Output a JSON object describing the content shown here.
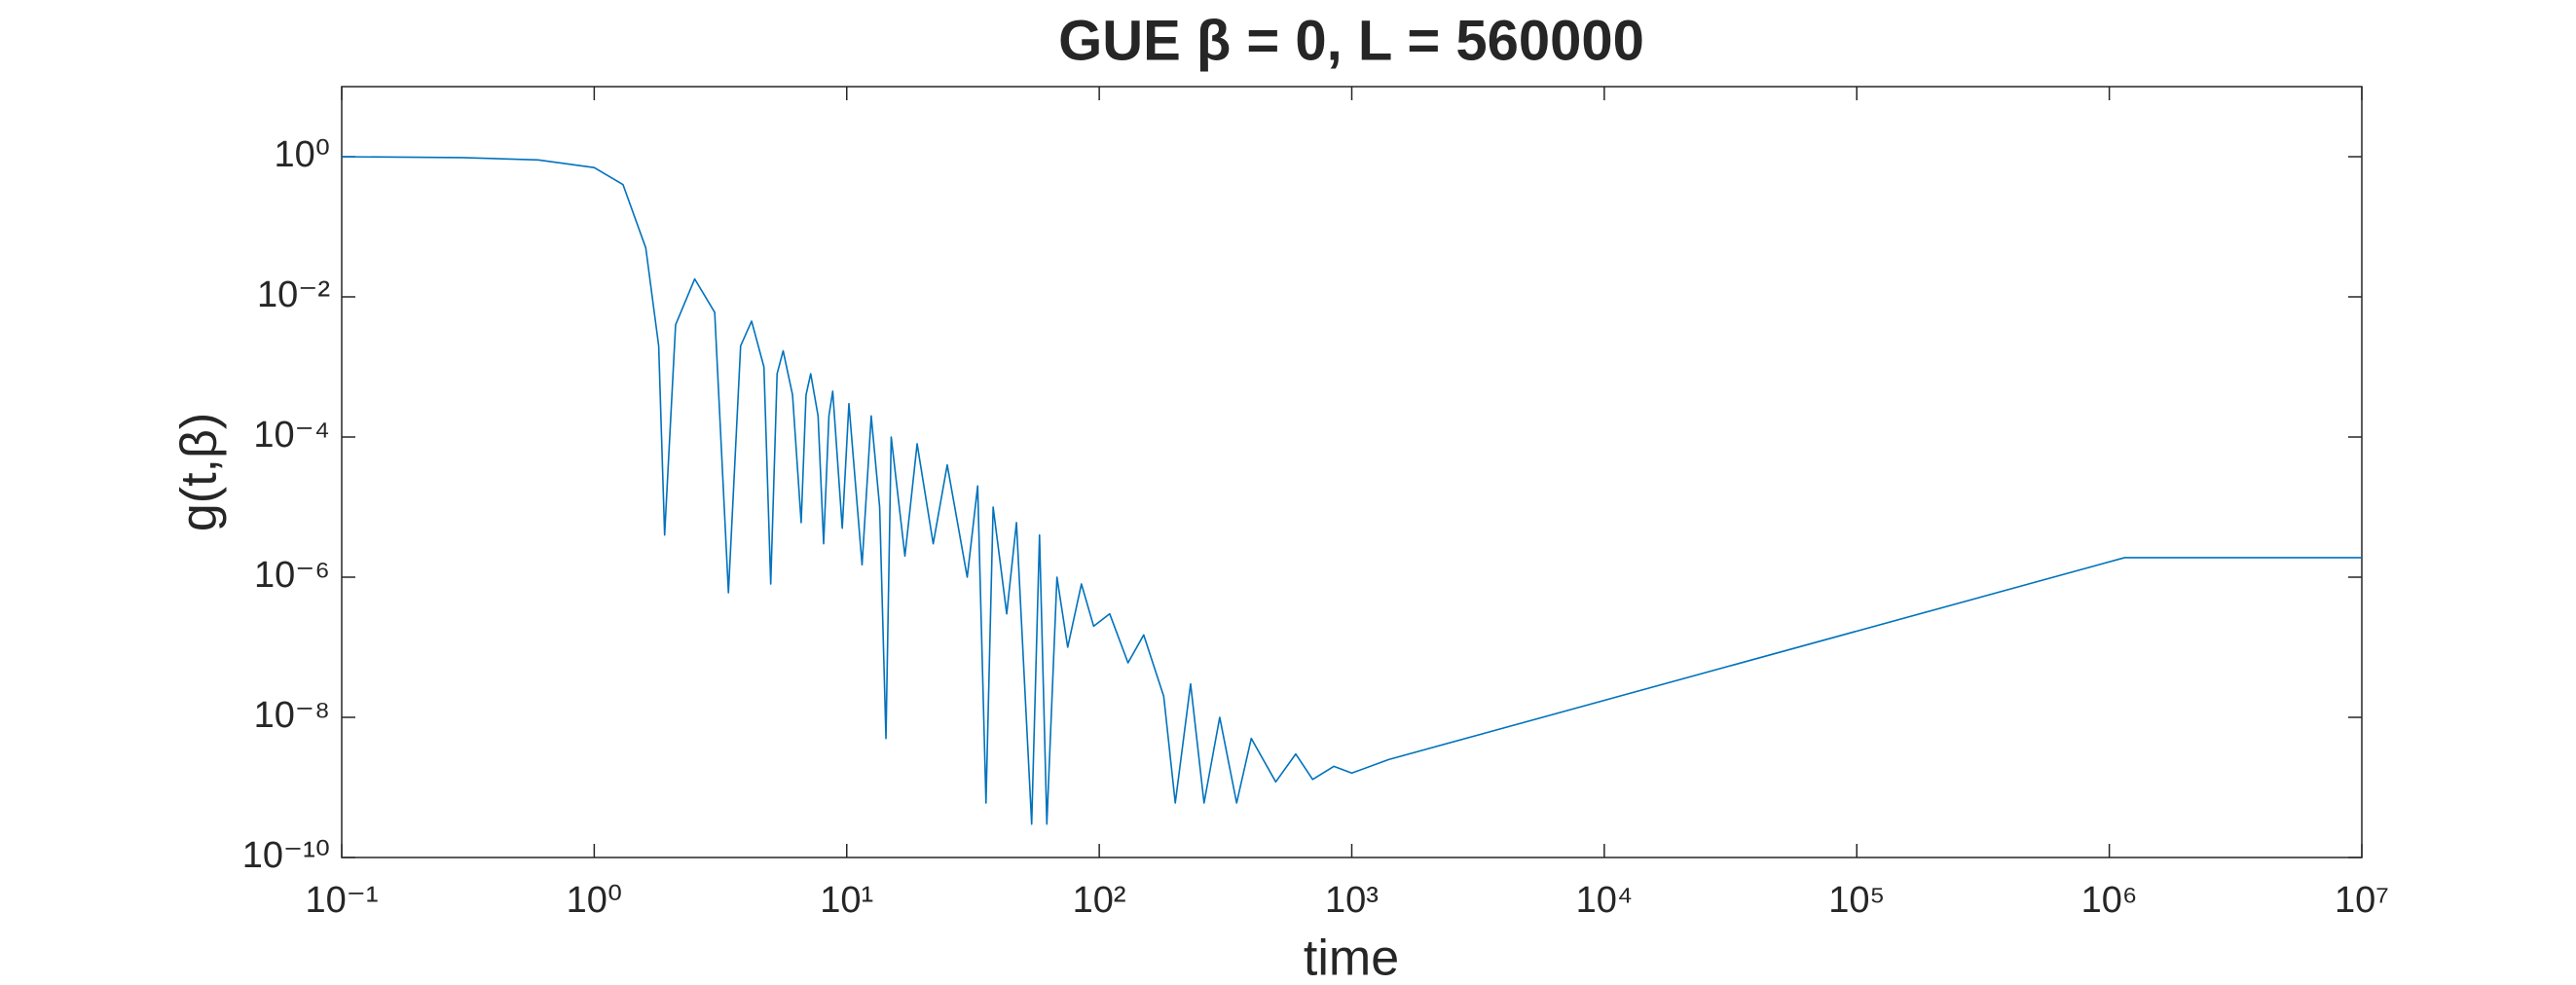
{
  "chart_data": {
    "type": "line",
    "title": "GUE β = 0, L = 560000",
    "xlabel": "time",
    "ylabel": "g(t,β)",
    "xscale": "log",
    "yscale": "log",
    "color": "#0072bd",
    "xlim": [
      0.1,
      10000000
    ],
    "ylim": [
      1e-10,
      10
    ],
    "xticks": [
      {
        "value": 0.1,
        "label": "10⁻¹"
      },
      {
        "value": 1,
        "label": "10⁰"
      },
      {
        "value": 10,
        "label": "10¹"
      },
      {
        "value": 100,
        "label": "10²"
      },
      {
        "value": 1000,
        "label": "10³"
      },
      {
        "value": 10000,
        "label": "10⁴"
      },
      {
        "value": 100000,
        "label": "10⁵"
      },
      {
        "value": 1000000,
        "label": "10⁶"
      },
      {
        "value": 10000000,
        "label": "10⁷"
      }
    ],
    "yticks": [
      {
        "value": 1e-10,
        "label": "10⁻¹⁰"
      },
      {
        "value": 1e-08,
        "label": "10⁻⁸"
      },
      {
        "value": 1e-06,
        "label": "10⁻⁶"
      },
      {
        "value": 0.0001,
        "label": "10⁻⁴"
      },
      {
        "value": 0.01,
        "label": "10⁻²"
      },
      {
        "value": 1,
        "label": "10⁰"
      }
    ],
    "x": [
      0.1,
      0.3,
      0.6,
      1,
      1.3,
      1.6,
      1.8,
      1.9,
      2.1,
      2.5,
      3.0,
      3.4,
      3.8,
      4.2,
      4.7,
      5.0,
      5.3,
      5.6,
      6.1,
      6.6,
      6.9,
      7.2,
      7.7,
      8.1,
      8.5,
      8.8,
      9.6,
      10.2,
      11.5,
      12.5,
      13.5,
      14.3,
      15,
      17,
      19,
      22,
      25,
      30,
      33,
      35.6,
      38,
      43,
      47,
      54,
      58,
      62,
      68,
      75,
      85,
      95,
      110,
      130,
      150,
      180,
      200,
      230,
      260,
      300,
      350,
      400,
      500,
      600,
      700,
      850,
      1000,
      1400,
      1150000,
      10000000
    ],
    "values": [
      1,
      0.97,
      0.9,
      0.7,
      0.4,
      0.05,
      0.002,
      4e-06,
      0.004,
      0.018,
      0.006,
      6e-07,
      0.002,
      0.0045,
      0.001,
      8e-07,
      0.0008,
      0.0017,
      0.0004,
      6e-06,
      0.0004,
      0.0008,
      0.0002,
      3e-06,
      0.0002,
      0.00045,
      5e-06,
      0.0003,
      1.5e-06,
      0.0002,
      1e-05,
      5e-09,
      0.0001,
      2e-06,
      8e-05,
      3e-06,
      4e-05,
      1e-06,
      2e-05,
      6e-10,
      1e-05,
      3e-07,
      6e-06,
      3e-10,
      4e-06,
      3e-10,
      1e-06,
      1e-07,
      8e-07,
      2e-07,
      3e-07,
      6e-08,
      1.5e-07,
      2e-08,
      6e-10,
      3e-08,
      6e-10,
      1e-08,
      6e-10,
      5e-09,
      1.2e-09,
      3e-09,
      1.3e-09,
      2e-09,
      1.6e-09,
      2.5e-09,
      1.9e-06,
      1.9e-06
    ]
  }
}
